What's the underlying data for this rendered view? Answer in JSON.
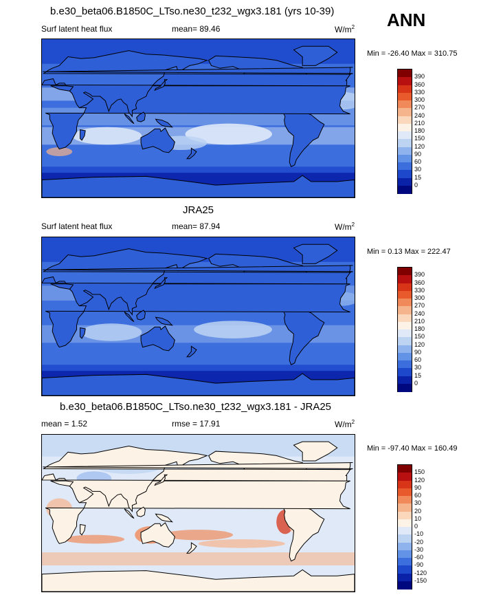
{
  "season": "ANN",
  "panels": [
    {
      "title": "b.e30_beta06.B1850C_LTso.ne30_t232_wgx3.181 (yrs 10-39)",
      "left_label": "Surf latent heat flux",
      "mid_label": "mean=  89.46",
      "units": "W/m",
      "units_sup": "2",
      "minmax": "Min = -26.40 Max = 310.75",
      "colorbar_labels": [
        "390",
        "360",
        "330",
        "300",
        "270",
        "240",
        "210",
        "180",
        "150",
        "120",
        "90",
        "60",
        "30",
        "15",
        "0"
      ],
      "colorbar_colors": [
        "#800000",
        "#b81010",
        "#d83418",
        "#e85a2c",
        "#f08a5a",
        "#f6b48c",
        "#fbd8bc",
        "#fdf2e6",
        "#dfe9f8",
        "#bcd3f2",
        "#8fb3ec",
        "#6393e6",
        "#3c6ede",
        "#1d48cc",
        "#0a22a8",
        "#000880"
      ]
    },
    {
      "title": "JRA25",
      "left_label": "Surf latent heat flux",
      "mid_label": "mean=  87.94",
      "units": "W/m",
      "units_sup": "2",
      "minmax": "Min =   0.13 Max = 222.47",
      "colorbar_labels": [
        "390",
        "360",
        "330",
        "300",
        "270",
        "240",
        "210",
        "180",
        "150",
        "120",
        "90",
        "60",
        "30",
        "15",
        "0"
      ],
      "colorbar_colors": [
        "#800000",
        "#b81010",
        "#d83418",
        "#e85a2c",
        "#f08a5a",
        "#f6b48c",
        "#fbd8bc",
        "#fdf2e6",
        "#dfe9f8",
        "#bcd3f2",
        "#8fb3ec",
        "#6393e6",
        "#3c6ede",
        "#1d48cc",
        "#0a22a8",
        "#000880"
      ]
    },
    {
      "title": "b.e30_beta06.B1850C_LTso.ne30_t232_wgx3.181 - JRA25",
      "left_label": "mean =   1.52",
      "mid_label": "rmse =  17.91",
      "units": "W/m",
      "units_sup": "2",
      "minmax": "Min = -97.40 Max = 160.49",
      "colorbar_labels": [
        "150",
        "120",
        "90",
        "60",
        "30",
        "20",
        "10",
        "0",
        "-10",
        "-20",
        "-30",
        "-60",
        "-90",
        "-120",
        "-150"
      ],
      "colorbar_colors": [
        "#800000",
        "#b81010",
        "#d83418",
        "#e85a2c",
        "#f08a5a",
        "#f6b48c",
        "#fbd8bc",
        "#fdf2e6",
        "#dfe9f8",
        "#bcd3f2",
        "#8fb3ec",
        "#6393e6",
        "#3c6ede",
        "#1d48cc",
        "#0a22a8",
        "#000880"
      ]
    }
  ]
}
